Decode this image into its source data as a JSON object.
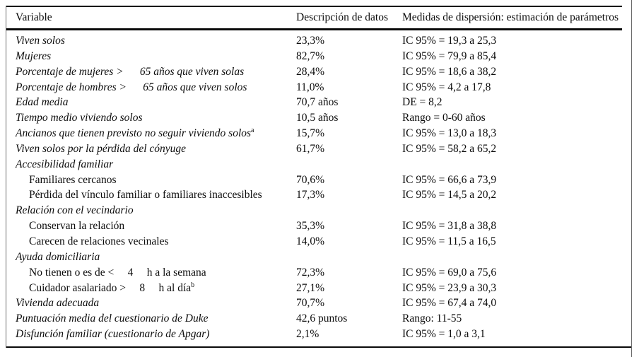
{
  "table": {
    "header": {
      "variable": "Variable",
      "description": "Descripción de datos",
      "dispersion": "Medidas de dispersión: estimación de parámetros"
    },
    "rows": [
      {
        "label": "Viven solos",
        "italic": true,
        "indent": false,
        "value": "23,3%",
        "dispersion": "IC 95% = 19,3 a 25,3"
      },
      {
        "label": "Mujeres",
        "italic": true,
        "indent": false,
        "value": "82,7%",
        "dispersion": "IC 95% = 79,9 a 85,4"
      },
      {
        "label": "Porcentaje de mujeres >      65 años que viven solas",
        "italic": true,
        "indent": false,
        "value": "28,4%",
        "dispersion": "IC 95% = 18,6 a 38,2"
      },
      {
        "label": "Porcentaje de hombres >      65 años que viven solos",
        "italic": true,
        "indent": false,
        "value": "11,0%",
        "dispersion": "IC 95% = 4,2 a 17,8"
      },
      {
        "label": "Edad media",
        "italic": true,
        "indent": false,
        "value": "70,7 años",
        "dispersion": "DE = 8,2"
      },
      {
        "label": "Tiempo medio viviendo solos",
        "italic": true,
        "indent": false,
        "value": "10,5 años",
        "dispersion": "Rango = 0-60 años"
      },
      {
        "label": "Ancianos que tienen previsto no seguir viviendo solos",
        "sup": "a",
        "italic": true,
        "indent": false,
        "value": "15,7%",
        "dispersion": "IC 95% = 13,0 a 18,3"
      },
      {
        "label": "Viven solos por la pérdida del cónyuge",
        "italic": true,
        "indent": false,
        "value": "61,7%",
        "dispersion": "IC 95% = 58,2 a 65,2"
      },
      {
        "label": "Accesibilidad familiar",
        "italic": true,
        "indent": false,
        "value": "",
        "dispersion": ""
      },
      {
        "label": "Familiares cercanos",
        "italic": false,
        "indent": true,
        "value": "70,6%",
        "dispersion": "IC 95% = 66,6 a 73,9"
      },
      {
        "label": "Pérdida del vínculo familiar o familiares inaccesibles",
        "italic": false,
        "indent": true,
        "value": "17,3%",
        "dispersion": "IC 95% = 14,5 a 20,2"
      },
      {
        "label": "Relación con el vecindario",
        "italic": true,
        "indent": false,
        "value": "",
        "dispersion": ""
      },
      {
        "label": "Conservan la relación",
        "italic": false,
        "indent": true,
        "value": "35,3%",
        "dispersion": "IC 95% = 31,8 a 38,8"
      },
      {
        "label": "Carecen de relaciones vecinales",
        "italic": false,
        "indent": true,
        "value": "14,0%",
        "dispersion": "IC 95% = 11,5 a 16,5"
      },
      {
        "label": "Ayuda domiciliaria",
        "italic": true,
        "indent": false,
        "value": "",
        "dispersion": ""
      },
      {
        "label": "No tienen o es de <     4     h a la semana",
        "italic": false,
        "indent": true,
        "value": "72,3%",
        "dispersion": "IC 95% = 69,0 a 75,6"
      },
      {
        "label": "Cuidador asalariado >     8     h al día",
        "sup": "b",
        "italic": false,
        "indent": true,
        "value": "27,1%",
        "dispersion": "IC 95% = 23,9 a 30,3"
      },
      {
        "label": "Vivienda adecuada",
        "italic": true,
        "indent": false,
        "value": "70,7%",
        "dispersion": "IC 95% = 67,4 a 74,0"
      },
      {
        "label": "Puntuación media del cuestionario de Duke",
        "italic": true,
        "indent": false,
        "value": "42,6 puntos",
        "dispersion": "Rango: 11-55"
      },
      {
        "label": "Disfunción familiar (cuestionario de Apgar)",
        "italic": true,
        "indent": false,
        "value": "2,1%",
        "dispersion": "IC 95% = 1,0 a 3,1"
      }
    ]
  }
}
